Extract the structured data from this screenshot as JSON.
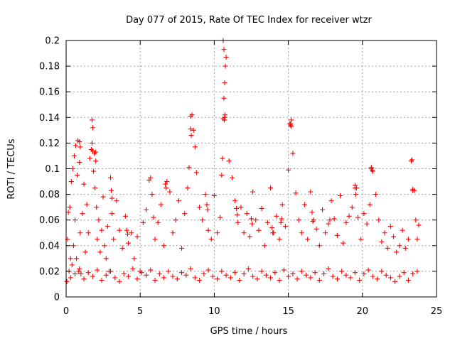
{
  "chart_data": {
    "type": "scatter",
    "title": "Day 077 of 2015, Rate Of TEC Index for receiver wtzr",
    "xlabel": "GPS time / hours",
    "ylabel": "ROTI / TECUs",
    "xlim": [
      0,
      25
    ],
    "ylim": [
      0,
      0.2
    ],
    "grid": true,
    "marker": "plus",
    "marker_color": "#ff0000",
    "x_ticks": [
      {
        "value": 0,
        "label": "0"
      },
      {
        "value": 5,
        "label": "5"
      },
      {
        "value": 10,
        "label": "10"
      },
      {
        "value": 15,
        "label": "15"
      },
      {
        "value": 20,
        "label": "20"
      },
      {
        "value": 25,
        "label": "25"
      }
    ],
    "y_ticks": [
      {
        "value": 0,
        "label": "0"
      },
      {
        "value": 0.02,
        "label": "0.02"
      },
      {
        "value": 0.04,
        "label": "0.04"
      },
      {
        "value": 0.06,
        "label": "0.06"
      },
      {
        "value": 0.08,
        "label": "0.08"
      },
      {
        "value": 0.1,
        "label": "0.1"
      },
      {
        "value": 0.12,
        "label": "0.12"
      },
      {
        "value": 0.14,
        "label": "0.14"
      },
      {
        "value": 0.16,
        "label": "0.16"
      },
      {
        "value": 0.18,
        "label": "0.18"
      },
      {
        "value": 0.2,
        "label": "0.2"
      }
    ],
    "series": [
      {
        "name": "ROTI",
        "x": [
          0.05,
          0.1,
          0.15,
          0.2,
          0.25,
          0.3,
          0.35,
          0.4,
          0.45,
          0.5,
          0.55,
          0.6,
          0.65,
          0.7,
          0.75,
          0.8,
          0.85,
          0.9,
          0.95,
          1.0,
          1.1,
          1.2,
          1.3,
          1.4,
          1.5,
          1.6,
          1.7,
          1.75,
          1.8,
          1.85,
          1.9,
          1.95,
          2.0,
          2.05,
          2.1,
          2.2,
          2.3,
          2.4,
          2.5,
          2.6,
          2.7,
          2.8,
          2.9,
          3.0,
          3.1,
          3.2,
          3.4,
          3.6,
          3.8,
          4.0,
          4.2,
          4.4,
          4.6,
          4.8,
          5.0,
          5.2,
          5.4,
          5.6,
          5.7,
          5.8,
          5.9,
          6.0,
          6.2,
          6.4,
          6.6,
          6.8,
          7.0,
          7.2,
          7.4,
          7.6,
          7.8,
          8.0,
          8.2,
          8.3,
          8.4,
          8.5,
          8.6,
          8.7,
          8.8,
          9.0,
          9.2,
          9.4,
          9.6,
          9.8,
          10.0,
          10.2,
          10.4,
          10.5,
          10.55,
          10.6,
          10.65,
          10.7,
          10.75,
          10.8,
          11.0,
          11.2,
          11.4,
          11.6,
          11.8,
          12.0,
          12.2,
          12.4,
          12.6,
          12.8,
          13.0,
          13.2,
          13.4,
          13.6,
          13.8,
          14.0,
          14.2,
          14.4,
          14.6,
          14.8,
          15.0,
          15.1,
          15.15,
          15.2,
          15.3,
          15.5,
          15.7,
          15.9,
          16.1,
          16.3,
          16.5,
          16.7,
          16.9,
          17.1,
          17.3,
          17.5,
          17.7,
          17.9,
          18.1,
          18.3,
          18.5,
          18.7,
          18.9,
          19.1,
          19.3,
          19.5,
          19.6,
          19.7,
          19.9,
          20.1,
          20.3,
          20.5,
          20.6,
          20.7,
          20.9,
          21.1,
          21.3,
          21.5,
          21.7,
          21.9,
          22.1,
          22.3,
          22.5,
          22.7,
          22.9,
          23.1,
          23.3,
          23.4,
          23.5,
          23.6,
          23.7,
          23.8,
          0.3,
          0.6,
          0.9,
          1.2,
          1.5,
          1.8,
          2.1,
          2.4,
          2.7,
          3.0,
          3.3,
          3.6,
          3.9,
          4.2,
          4.5,
          4.8,
          5.1,
          5.4,
          5.7,
          6.0,
          6.3,
          6.6,
          6.9,
          7.2,
          7.5,
          7.8,
          8.1,
          8.4,
          8.7,
          9.0,
          9.3,
          9.6,
          9.9,
          10.2,
          10.5,
          10.8,
          11.1,
          11.4,
          11.7,
          12.0,
          12.3,
          12.6,
          12.9,
          13.2,
          13.5,
          13.8,
          14.1,
          14.4,
          14.7,
          15.0,
          15.3,
          15.6,
          15.9,
          16.2,
          16.5,
          16.8,
          17.1,
          17.4,
          17.7,
          18.0,
          18.3,
          18.6,
          18.9,
          19.2,
          19.5,
          19.8,
          20.1,
          20.4,
          20.7,
          21.0,
          21.3,
          21.6,
          21.9,
          22.2,
          22.5,
          22.8,
          23.1,
          23.4,
          23.7,
          10.6,
          10.65,
          10.7,
          10.72,
          10.68,
          8.4,
          8.45,
          15.15,
          15.2,
          1.75,
          1.8,
          2.0,
          0.9,
          0.95,
          20.6,
          20.65,
          23.35,
          23.4,
          6.7,
          6.75,
          9.5,
          9.55,
          3.05,
          3.1,
          11.5,
          11.55,
          14.5,
          14.55,
          16.6,
          16.65,
          19.5,
          19.55,
          4.1,
          4.15,
          12.5,
          12.55,
          13.9,
          13.95,
          17.8
        ],
        "y": [
          0.012,
          0.045,
          0.066,
          0.02,
          0.07,
          0.03,
          0.09,
          0.025,
          0.1,
          0.04,
          0.11,
          0.06,
          0.118,
          0.03,
          0.095,
          0.122,
          0.02,
          0.105,
          0.05,
          0.018,
          0.065,
          0.088,
          0.035,
          0.072,
          0.05,
          0.108,
          0.115,
          0.138,
          0.132,
          0.098,
          0.112,
          0.085,
          0.106,
          0.07,
          0.045,
          0.06,
          0.035,
          0.052,
          0.078,
          0.04,
          0.03,
          0.055,
          0.02,
          0.093,
          0.065,
          0.045,
          0.075,
          0.052,
          0.038,
          0.063,
          0.042,
          0.05,
          0.03,
          0.047,
          0.02,
          0.058,
          0.068,
          0.091,
          0.093,
          0.08,
          0.062,
          0.045,
          0.058,
          0.072,
          0.04,
          0.09,
          0.082,
          0.05,
          0.06,
          0.075,
          0.038,
          0.065,
          0.085,
          0.101,
          0.141,
          0.142,
          0.13,
          0.117,
          0.097,
          0.07,
          0.06,
          0.08,
          0.052,
          0.045,
          0.079,
          0.05,
          0.062,
          0.095,
          0.108,
          0.139,
          0.155,
          0.167,
          0.18,
          0.187,
          0.106,
          0.093,
          0.075,
          0.058,
          0.07,
          0.05,
          0.065,
          0.047,
          0.082,
          0.06,
          0.052,
          0.069,
          0.04,
          0.058,
          0.085,
          0.05,
          0.063,
          0.045,
          0.072,
          0.055,
          0.099,
          0.135,
          0.134,
          0.138,
          0.112,
          0.081,
          0.06,
          0.05,
          0.072,
          0.045,
          0.082,
          0.06,
          0.053,
          0.04,
          0.068,
          0.05,
          0.057,
          0.075,
          0.061,
          0.048,
          0.079,
          0.042,
          0.058,
          0.063,
          0.07,
          0.087,
          0.085,
          0.062,
          0.045,
          0.065,
          0.057,
          0.072,
          0.1,
          0.098,
          0.08,
          0.06,
          0.043,
          0.05,
          0.038,
          0.055,
          0.047,
          0.035,
          0.04,
          0.052,
          0.038,
          0.045,
          0.106,
          0.084,
          0.083,
          0.06,
          0.045,
          0.056,
          0.015,
          0.018,
          0.022,
          0.014,
          0.019,
          0.016,
          0.021,
          0.013,
          0.017,
          0.02,
          0.015,
          0.012,
          0.018,
          0.016,
          0.022,
          0.014,
          0.019,
          0.017,
          0.021,
          0.013,
          0.018,
          0.015,
          0.02,
          0.016,
          0.014,
          0.019,
          0.017,
          0.022,
          0.015,
          0.013,
          0.018,
          0.021,
          0.016,
          0.014,
          0.02,
          0.017,
          0.015,
          0.019,
          0.013,
          0.018,
          0.022,
          0.016,
          0.014,
          0.02,
          0.017,
          0.015,
          0.019,
          0.013,
          0.021,
          0.016,
          0.018,
          0.014,
          0.02,
          0.017,
          0.015,
          0.019,
          0.013,
          0.018,
          0.022,
          0.016,
          0.014,
          0.02,
          0.017,
          0.015,
          0.019,
          0.013,
          0.018,
          0.021,
          0.016,
          0.014,
          0.02,
          0.017,
          0.015,
          0.012,
          0.016,
          0.019,
          0.013,
          0.018,
          0.02,
          0.2,
          0.193,
          0.14,
          0.142,
          0.138,
          0.131,
          0.126,
          0.135,
          0.133,
          0.12,
          0.114,
          0.113,
          0.121,
          0.117,
          0.101,
          0.099,
          0.107,
          0.083,
          0.088,
          0.085,
          0.072,
          0.068,
          0.083,
          0.077,
          0.069,
          0.064,
          0.058,
          0.061,
          0.066,
          0.059,
          0.085,
          0.08,
          0.052,
          0.049,
          0.061,
          0.057,
          0.054,
          0.05,
          0.06
        ]
      }
    ]
  }
}
